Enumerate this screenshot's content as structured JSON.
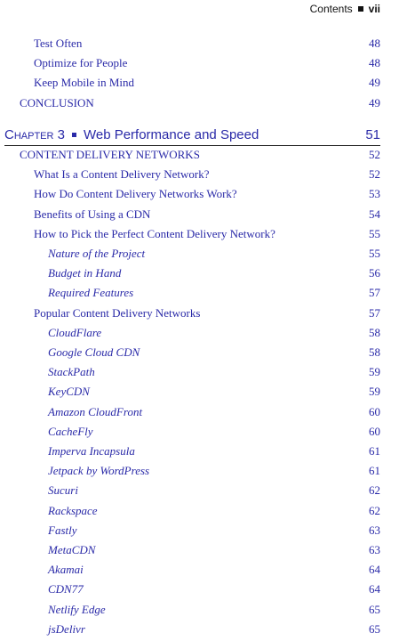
{
  "header": {
    "title": "Contents",
    "page": "vii"
  },
  "continued": [
    {
      "title": "Test Often",
      "page": 48
    },
    {
      "title": "Optimize for People",
      "page": 48
    },
    {
      "title": "Keep Mobile in Mind",
      "page": 49
    }
  ],
  "conclusion": {
    "title": "CONCLUSION",
    "page": 49
  },
  "chapter": {
    "label": "Chapter 3",
    "title": "Web Performance and Speed",
    "page": 51
  },
  "section": {
    "title": "CONTENT DELIVERY NETWORKS",
    "page": 52,
    "entries": [
      {
        "title": "What Is a Content Delivery Network?",
        "page": 52
      },
      {
        "title": "How Do Content Delivery Networks Work?",
        "page": 53
      },
      {
        "title": "Benefits of Using a CDN",
        "page": 54
      },
      {
        "title": "How to Pick the Perfect Content Delivery Network?",
        "page": 55,
        "subentries": [
          {
            "title": "Nature of the Project",
            "page": 55
          },
          {
            "title": "Budget in Hand",
            "page": 56
          },
          {
            "title": "Required Features",
            "page": 57
          }
        ]
      },
      {
        "title": "Popular Content Delivery Networks",
        "page": 57,
        "subentries": [
          {
            "title": "CloudFlare",
            "page": 58
          },
          {
            "title": "Google Cloud CDN",
            "page": 58
          },
          {
            "title": "StackPath",
            "page": 59
          },
          {
            "title": "KeyCDN",
            "page": 59
          },
          {
            "title": "Amazon CloudFront",
            "page": 60
          },
          {
            "title": "CacheFly",
            "page": 60
          },
          {
            "title": "Imperva Incapsula",
            "page": 61
          },
          {
            "title": "Jetpack by WordPress",
            "page": 61
          },
          {
            "title": "Sucuri",
            "page": 62
          },
          {
            "title": "Rackspace",
            "page": 62
          },
          {
            "title": "Fastly",
            "page": 63
          },
          {
            "title": "MetaCDN",
            "page": 63
          },
          {
            "title": "Akamai",
            "page": 64
          },
          {
            "title": "CDN77",
            "page": 64
          },
          {
            "title": "Netlify Edge",
            "page": 65
          },
          {
            "title": "jsDelivr",
            "page": 65
          }
        ]
      }
    ]
  }
}
